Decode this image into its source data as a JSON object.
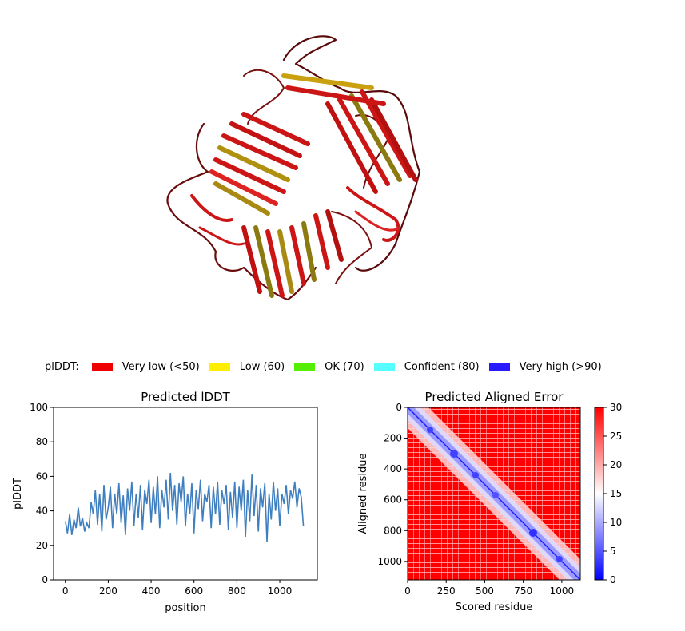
{
  "legend": {
    "title": "plDDT:",
    "items": [
      {
        "label": "Very low (<50)",
        "color": "#ee0000"
      },
      {
        "label": "Low (60)",
        "color": "#ffee00"
      },
      {
        "label": "OK (70)",
        "color": "#55ee00"
      },
      {
        "label": "Confident (80)",
        "color": "#55ffff"
      },
      {
        "label": "Very high (>90)",
        "color": "#2a1aff"
      }
    ]
  },
  "structure": {
    "description_icon": "protein-ribbon-structure",
    "colors": {
      "very_low": "#cc1010",
      "low_dark": "#8a7a10",
      "low": "#c8a010",
      "outline": "#3a0808"
    }
  },
  "chart_data": [
    {
      "type": "line",
      "title": "Predicted lDDT",
      "xlabel": "position",
      "ylabel": "plDDT",
      "xlim": [
        -55,
        1175
      ],
      "ylim": [
        0,
        100
      ],
      "xticks": [
        0,
        200,
        400,
        600,
        800,
        1000
      ],
      "yticks": [
        0,
        20,
        40,
        60,
        80,
        100
      ],
      "n_residues": 1120,
      "color": "#3f7fbf",
      "series": [
        {
          "x": [
            0,
            10,
            20,
            30,
            40,
            50,
            60,
            70,
            80,
            90,
            100,
            110,
            120,
            130,
            140,
            150,
            160,
            170,
            180,
            190,
            200,
            210,
            220,
            230,
            240,
            250,
            260,
            270,
            280,
            290,
            300,
            310,
            320,
            330,
            340,
            350,
            360,
            370,
            380,
            390,
            400,
            410,
            420,
            430,
            440,
            450,
            460,
            470,
            480,
            490,
            500,
            510,
            520,
            530,
            540,
            550,
            560,
            570,
            580,
            590,
            600,
            610,
            620,
            630,
            640,
            650,
            660,
            670,
            680,
            690,
            700,
            710,
            720,
            730,
            740,
            750,
            760,
            770,
            780,
            790,
            800,
            810,
            820,
            830,
            840,
            850,
            860,
            870,
            880,
            890,
            900,
            910,
            920,
            930,
            940,
            950,
            960,
            970,
            980,
            990,
            1000,
            1010,
            1020,
            1030,
            1040,
            1050,
            1060,
            1070,
            1080,
            1090,
            1100,
            1110
          ],
          "values": [
            34,
            27,
            38,
            26,
            35,
            30,
            42,
            31,
            36,
            28,
            33,
            30,
            45,
            38,
            52,
            32,
            50,
            28,
            55,
            35,
            42,
            54,
            30,
            50,
            38,
            56,
            33,
            49,
            26,
            53,
            40,
            57,
            31,
            50,
            36,
            55,
            29,
            52,
            44,
            58,
            33,
            54,
            38,
            60,
            30,
            52,
            42,
            58,
            35,
            62,
            40,
            55,
            32,
            56,
            45,
            60,
            31,
            50,
            38,
            56,
            27,
            52,
            41,
            58,
            34,
            50,
            45,
            55,
            30,
            54,
            38,
            57,
            32,
            52,
            44,
            55,
            29,
            51,
            36,
            57,
            30,
            54,
            40,
            58,
            25,
            52,
            34,
            61,
            37,
            55,
            28,
            53,
            42,
            56,
            22,
            50,
            35,
            57,
            40,
            53,
            31,
            50,
            44,
            55,
            38,
            52,
            47,
            57,
            42,
            53,
            48,
            31
          ]
        }
      ]
    },
    {
      "type": "heatmap",
      "title": "Predicted Aligned Error",
      "xlabel": "Scored residue",
      "ylabel": "Aligned residue",
      "xlim": [
        0,
        1120
      ],
      "ylim": [
        1120,
        0
      ],
      "xticks": [
        0,
        250,
        500,
        750,
        1000
      ],
      "yticks": [
        0,
        200,
        400,
        600,
        800,
        1000
      ],
      "colorbar": {
        "min": 0,
        "max": 30,
        "ticks": [
          0,
          5,
          10,
          15,
          20,
          25,
          30
        ],
        "colormap": "bwr"
      },
      "values_summary": "mostly ~30 (red) off-diagonal, low error (blue) along diagonal"
    }
  ]
}
